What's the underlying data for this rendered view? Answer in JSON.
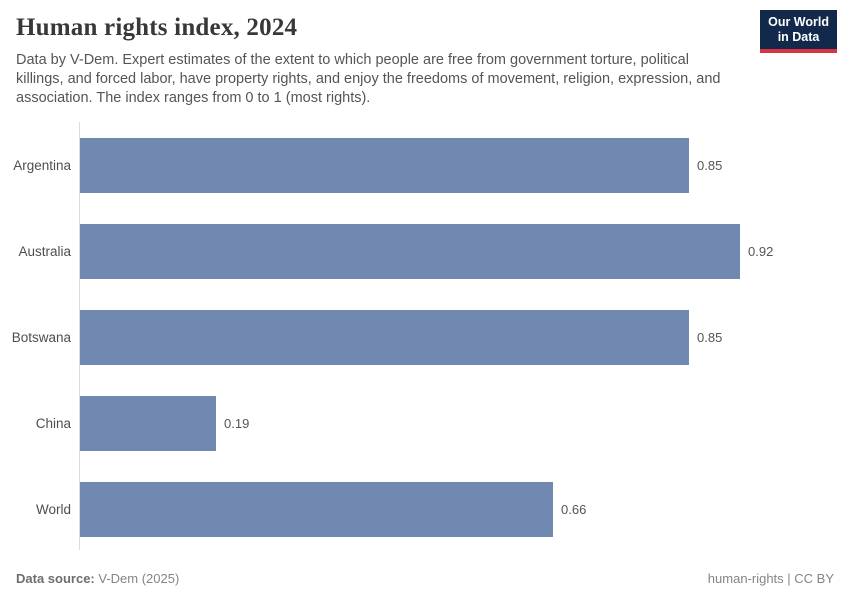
{
  "header": {
    "title": "Human rights index, 2024",
    "subtitle": "Data by V-Dem. Expert estimates of the extent to which people are free from government torture, political killings, and forced labor, have property rights, and enjoy the freedoms of movement, religion, expression, and association. The index ranges from 0 to 1 (most rights).",
    "logo_line1": "Our World",
    "logo_line2": "in Data"
  },
  "chart_data": {
    "type": "bar",
    "orientation": "horizontal",
    "title": "Human rights index, 2024",
    "categories": [
      "Argentina",
      "Australia",
      "Botswana",
      "China",
      "World"
    ],
    "values": [
      0.85,
      0.92,
      0.85,
      0.19,
      0.66
    ],
    "value_labels": [
      "0.85",
      "0.92",
      "0.85",
      "0.19",
      "0.66"
    ],
    "xlabel": "",
    "ylabel": "",
    "xlim": [
      0,
      1
    ],
    "grid": false,
    "legend": false
  },
  "footer": {
    "source_label": "Data source:",
    "source_value": " V-Dem (2025)",
    "note_right": "human-rights | CC BY"
  },
  "colors": {
    "bar": "#7189b0",
    "logo_bg": "#12294b",
    "logo_stripe": "#d7353f",
    "axis": "#dcdcdc"
  }
}
